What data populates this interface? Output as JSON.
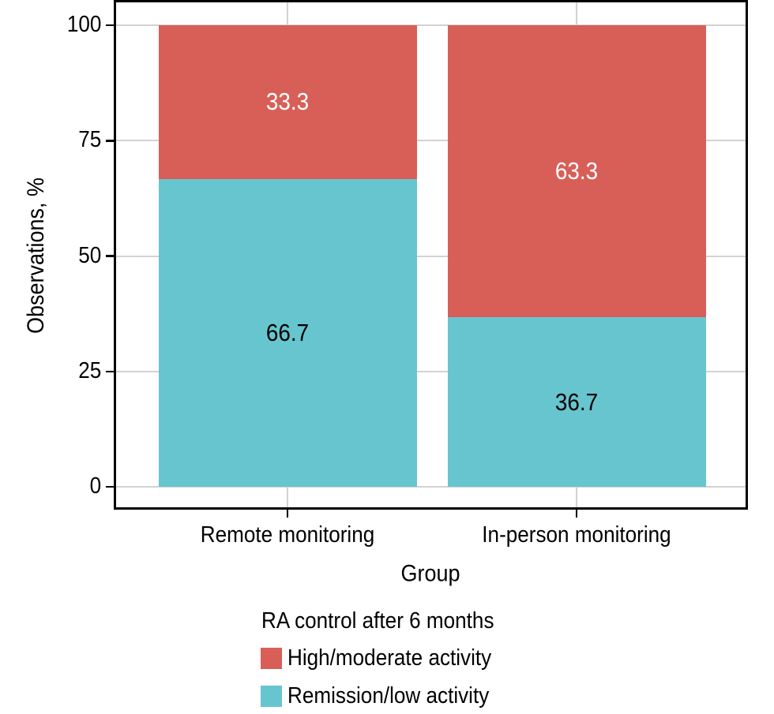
{
  "figure": {
    "background": "#ffffff",
    "text_color": "#000000",
    "grid_color": "#d2d2d2",
    "panel_border_color": "#000000"
  },
  "chart_data": {
    "type": "bar",
    "stacked": true,
    "orientation": "vertical",
    "title": "",
    "categories": [
      "Remote monitoring",
      "In-person monitoring"
    ],
    "series": [
      {
        "name": "High/moderate activity",
        "color": "#d85f58",
        "label_color": "#ffffff",
        "values": [
          33.3,
          63.3
        ]
      },
      {
        "name": "Remission/low activity",
        "color": "#67c5cf",
        "label_color": "#000000",
        "values": [
          66.7,
          36.7
        ]
      }
    ],
    "bar_value_labels": [
      "33.3",
      "63.3",
      "66.7",
      "36.7"
    ],
    "xlabel": "Group",
    "ylabel": "Observations, %",
    "ylim": [
      0,
      100
    ],
    "yticks": [
      0,
      25,
      50,
      75,
      100
    ],
    "grid": "horizontal majors at yticks; vertical lines at category centers",
    "legend_position": "bottom",
    "legend_title": "RA control after 6 months"
  }
}
